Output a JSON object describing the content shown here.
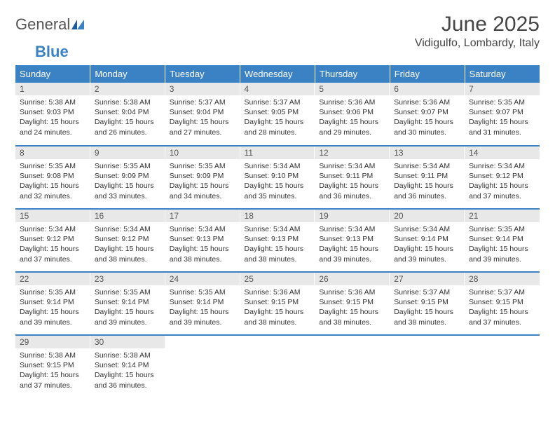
{
  "logo": {
    "text_general": "General",
    "text_blue": "Blue"
  },
  "title": "June 2025",
  "location": "Vidigulfo, Lombardy, Italy",
  "colors": {
    "header_bg": "#3b82c4",
    "header_fg": "#ffffff",
    "daynum_bg": "#e8e8e8",
    "row_divider": "#3b82c4",
    "text": "#333333",
    "title_text": "#444444",
    "background": "#ffffff"
  },
  "typography": {
    "title_fontsize": 30,
    "location_fontsize": 16,
    "dayheader_fontsize": 13,
    "daynum_fontsize": 12,
    "body_fontsize": 10.5
  },
  "day_headers": [
    "Sunday",
    "Monday",
    "Tuesday",
    "Wednesday",
    "Thursday",
    "Friday",
    "Saturday"
  ],
  "weeks": [
    [
      {
        "n": "1",
        "sr": "5:38 AM",
        "ss": "9:03 PM",
        "dl": "15 hours and 24 minutes."
      },
      {
        "n": "2",
        "sr": "5:38 AM",
        "ss": "9:04 PM",
        "dl": "15 hours and 26 minutes."
      },
      {
        "n": "3",
        "sr": "5:37 AM",
        "ss": "9:04 PM",
        "dl": "15 hours and 27 minutes."
      },
      {
        "n": "4",
        "sr": "5:37 AM",
        "ss": "9:05 PM",
        "dl": "15 hours and 28 minutes."
      },
      {
        "n": "5",
        "sr": "5:36 AM",
        "ss": "9:06 PM",
        "dl": "15 hours and 29 minutes."
      },
      {
        "n": "6",
        "sr": "5:36 AM",
        "ss": "9:07 PM",
        "dl": "15 hours and 30 minutes."
      },
      {
        "n": "7",
        "sr": "5:35 AM",
        "ss": "9:07 PM",
        "dl": "15 hours and 31 minutes."
      }
    ],
    [
      {
        "n": "8",
        "sr": "5:35 AM",
        "ss": "9:08 PM",
        "dl": "15 hours and 32 minutes."
      },
      {
        "n": "9",
        "sr": "5:35 AM",
        "ss": "9:09 PM",
        "dl": "15 hours and 33 minutes."
      },
      {
        "n": "10",
        "sr": "5:35 AM",
        "ss": "9:09 PM",
        "dl": "15 hours and 34 minutes."
      },
      {
        "n": "11",
        "sr": "5:34 AM",
        "ss": "9:10 PM",
        "dl": "15 hours and 35 minutes."
      },
      {
        "n": "12",
        "sr": "5:34 AM",
        "ss": "9:11 PM",
        "dl": "15 hours and 36 minutes."
      },
      {
        "n": "13",
        "sr": "5:34 AM",
        "ss": "9:11 PM",
        "dl": "15 hours and 36 minutes."
      },
      {
        "n": "14",
        "sr": "5:34 AM",
        "ss": "9:12 PM",
        "dl": "15 hours and 37 minutes."
      }
    ],
    [
      {
        "n": "15",
        "sr": "5:34 AM",
        "ss": "9:12 PM",
        "dl": "15 hours and 37 minutes."
      },
      {
        "n": "16",
        "sr": "5:34 AM",
        "ss": "9:12 PM",
        "dl": "15 hours and 38 minutes."
      },
      {
        "n": "17",
        "sr": "5:34 AM",
        "ss": "9:13 PM",
        "dl": "15 hours and 38 minutes."
      },
      {
        "n": "18",
        "sr": "5:34 AM",
        "ss": "9:13 PM",
        "dl": "15 hours and 38 minutes."
      },
      {
        "n": "19",
        "sr": "5:34 AM",
        "ss": "9:13 PM",
        "dl": "15 hours and 39 minutes."
      },
      {
        "n": "20",
        "sr": "5:34 AM",
        "ss": "9:14 PM",
        "dl": "15 hours and 39 minutes."
      },
      {
        "n": "21",
        "sr": "5:35 AM",
        "ss": "9:14 PM",
        "dl": "15 hours and 39 minutes."
      }
    ],
    [
      {
        "n": "22",
        "sr": "5:35 AM",
        "ss": "9:14 PM",
        "dl": "15 hours and 39 minutes."
      },
      {
        "n": "23",
        "sr": "5:35 AM",
        "ss": "9:14 PM",
        "dl": "15 hours and 39 minutes."
      },
      {
        "n": "24",
        "sr": "5:35 AM",
        "ss": "9:14 PM",
        "dl": "15 hours and 39 minutes."
      },
      {
        "n": "25",
        "sr": "5:36 AM",
        "ss": "9:15 PM",
        "dl": "15 hours and 38 minutes."
      },
      {
        "n": "26",
        "sr": "5:36 AM",
        "ss": "9:15 PM",
        "dl": "15 hours and 38 minutes."
      },
      {
        "n": "27",
        "sr": "5:37 AM",
        "ss": "9:15 PM",
        "dl": "15 hours and 38 minutes."
      },
      {
        "n": "28",
        "sr": "5:37 AM",
        "ss": "9:15 PM",
        "dl": "15 hours and 37 minutes."
      }
    ],
    [
      {
        "n": "29",
        "sr": "5:38 AM",
        "ss": "9:15 PM",
        "dl": "15 hours and 37 minutes."
      },
      {
        "n": "30",
        "sr": "5:38 AM",
        "ss": "9:14 PM",
        "dl": "15 hours and 36 minutes."
      },
      null,
      null,
      null,
      null,
      null
    ]
  ],
  "labels": {
    "sunrise_prefix": "Sunrise: ",
    "sunset_prefix": "Sunset: ",
    "daylight_prefix": "Daylight: "
  }
}
